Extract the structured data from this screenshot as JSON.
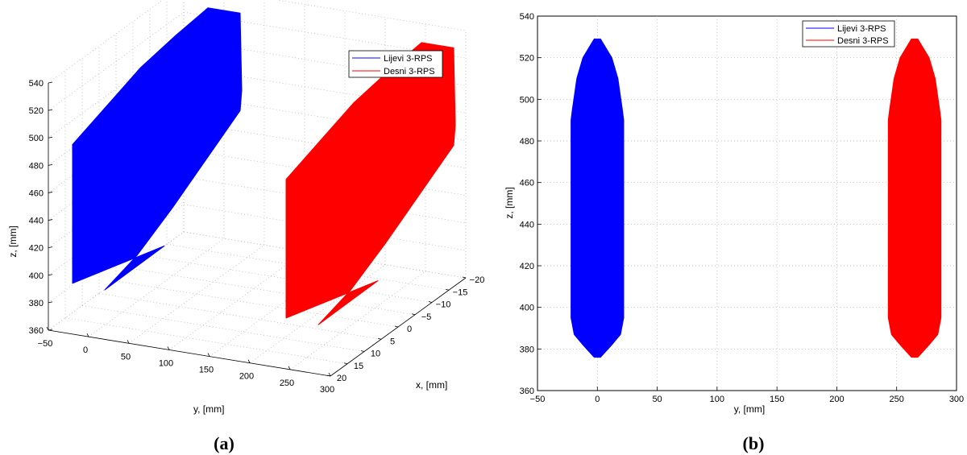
{
  "chart_data": [
    {
      "type": "scatter",
      "view": "3d",
      "panel_label": "(a)",
      "xlabel": "x, [mm]",
      "ylabel": "y, [mm]",
      "zlabel": "z, [mm]",
      "xlim": [
        -20,
        20
      ],
      "ylim": [
        -50,
        300
      ],
      "zlim": [
        360,
        540
      ],
      "xticks": [
        "-20",
        "-15",
        "-10",
        "-5",
        "0",
        "5",
        "10",
        "15",
        "20"
      ],
      "yticks": [
        "-50",
        "0",
        "50",
        "100",
        "150",
        "200",
        "250",
        "300"
      ],
      "zticks": [
        "360",
        "380",
        "400",
        "420",
        "440",
        "460",
        "480",
        "500",
        "520",
        "540"
      ],
      "grid": true,
      "legend_position": "top-right",
      "series": [
        {
          "name": "Lijevi 3-RPS",
          "color": "#0000ff",
          "y_center": 0,
          "x_range": [
            -20,
            20
          ],
          "z_range": [
            376,
            529
          ]
        },
        {
          "name": "Desni 3-RPS",
          "color": "#ff0000",
          "y_center": 265,
          "x_range": [
            -20,
            20
          ],
          "z_range": [
            376,
            529
          ]
        }
      ]
    },
    {
      "type": "scatter",
      "view": "y-z projection",
      "panel_label": "(b)",
      "xlabel": "y, [mm]",
      "ylabel": "z, [mm]",
      "xlim": [
        -50,
        300
      ],
      "ylim": [
        360,
        540
      ],
      "xticks": [
        "-50",
        "0",
        "50",
        "100",
        "150",
        "200",
        "250",
        "300"
      ],
      "yticks": [
        "360",
        "380",
        "400",
        "420",
        "440",
        "460",
        "480",
        "500",
        "520",
        "540"
      ],
      "grid": true,
      "legend_position": "top-right",
      "series": [
        {
          "name": "Lijevi 3-RPS",
          "color": "#0000ff",
          "y_center": 0,
          "y_halfwidth": 22,
          "z_range": [
            376,
            529
          ]
        },
        {
          "name": "Desni 3-RPS",
          "color": "#ff0000",
          "y_center": 265,
          "y_halfwidth": 22,
          "z_range": [
            376,
            529
          ]
        }
      ]
    }
  ]
}
